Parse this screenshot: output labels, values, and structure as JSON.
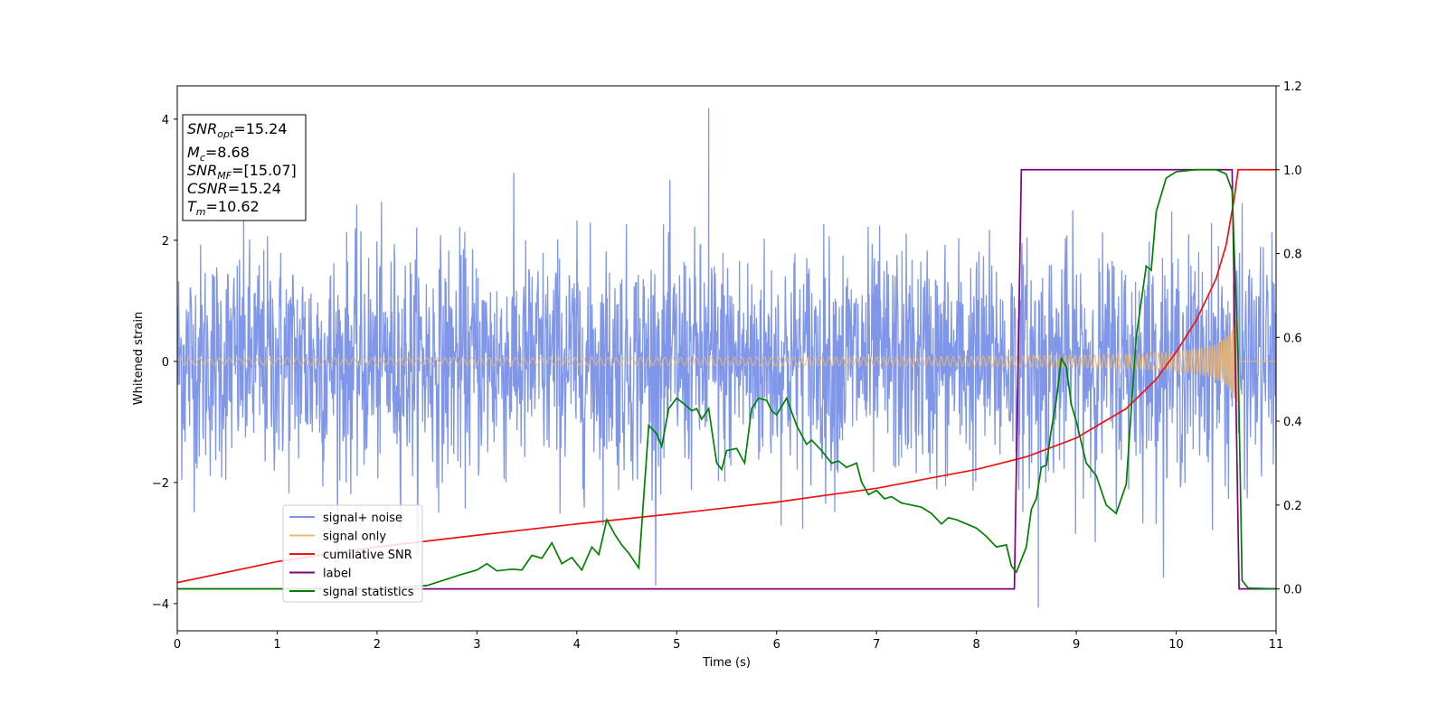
{
  "chart_data": {
    "type": "line",
    "title": "",
    "xlabel": "Time (s)",
    "ylabel": "Whitened strain",
    "ylabel_right": "",
    "xlim": [
      0,
      11
    ],
    "ylim": [
      -4.45,
      4.55
    ],
    "ylim_right": [
      -0.1,
      1.2
    ],
    "xticks": [
      0,
      1,
      2,
      3,
      4,
      5,
      6,
      7,
      8,
      9,
      10,
      11
    ],
    "yticks": [
      -4,
      -2,
      0,
      2,
      4
    ],
    "yticks_right": [
      0.0,
      0.2,
      0.4,
      0.6,
      0.8,
      1.0,
      1.2
    ],
    "grid": false,
    "legend_location": "lower-left",
    "info_box": {
      "lines": [
        {
          "main": "SNR",
          "sub": "opt",
          "value": "=15.24"
        },
        {
          "main": "M",
          "sub": "c",
          "value": "=8.68"
        },
        {
          "main": "SNR",
          "sub": "MF",
          "value": "=[15.07]"
        },
        {
          "main": "CSNR",
          "sub": "",
          "value": "=15.24"
        },
        {
          "main": "T",
          "sub": "m",
          "value": "=10.62"
        }
      ]
    },
    "series": [
      {
        "name": "signal+ noise",
        "axis": "left",
        "color": "#7b93e8",
        "kind": "noise",
        "noise_sigma": 0.95,
        "peak_max": 4.18,
        "peak_max_time": 5.32,
        "trough_min": -4.07,
        "trough_min_time": 8.62
      },
      {
        "name": "signal only",
        "axis": "left",
        "color": "#f0b86a",
        "kind": "chirp",
        "merger_time": 10.62,
        "amplitude_start": 0.05,
        "amplitude_end": 0.85
      },
      {
        "name": "cumilative SNR",
        "axis": "right",
        "color": "#ee1111",
        "points": [
          [
            0,
            0.015
          ],
          [
            1,
            0.065
          ],
          [
            2,
            0.1
          ],
          [
            3,
            0.128
          ],
          [
            4,
            0.155
          ],
          [
            5,
            0.18
          ],
          [
            6,
            0.207
          ],
          [
            7,
            0.24
          ],
          [
            8,
            0.285
          ],
          [
            8.5,
            0.315
          ],
          [
            9,
            0.36
          ],
          [
            9.5,
            0.43
          ],
          [
            9.8,
            0.5
          ],
          [
            10,
            0.565
          ],
          [
            10.2,
            0.64
          ],
          [
            10.4,
            0.74
          ],
          [
            10.5,
            0.82
          ],
          [
            10.58,
            0.93
          ],
          [
            10.62,
            1.0
          ],
          [
            11,
            1.0
          ]
        ]
      },
      {
        "name": "label",
        "axis": "right",
        "color": "#800080",
        "points": [
          [
            0,
            0
          ],
          [
            8.38,
            0
          ],
          [
            8.45,
            1.0
          ],
          [
            10.56,
            1.0
          ],
          [
            10.63,
            0
          ],
          [
            11,
            0
          ]
        ]
      },
      {
        "name": "signal statistics",
        "axis": "right",
        "color": "#008000",
        "points": [
          [
            0,
            0
          ],
          [
            1,
            0
          ],
          [
            2,
            0
          ],
          [
            2.5,
            0.008
          ],
          [
            2.85,
            0.035
          ],
          [
            3.0,
            0.045
          ],
          [
            3.1,
            0.06
          ],
          [
            3.2,
            0.043
          ],
          [
            3.35,
            0.047
          ],
          [
            3.45,
            0.045
          ],
          [
            3.55,
            0.08
          ],
          [
            3.65,
            0.073
          ],
          [
            3.75,
            0.11
          ],
          [
            3.85,
            0.06
          ],
          [
            3.95,
            0.075
          ],
          [
            4.05,
            0.045
          ],
          [
            4.15,
            0.1
          ],
          [
            4.22,
            0.082
          ],
          [
            4.3,
            0.165
          ],
          [
            4.38,
            0.13
          ],
          [
            4.45,
            0.105
          ],
          [
            4.52,
            0.085
          ],
          [
            4.62,
            0.05
          ],
          [
            4.72,
            0.39
          ],
          [
            4.8,
            0.37
          ],
          [
            4.85,
            0.34
          ],
          [
            4.92,
            0.43
          ],
          [
            5.0,
            0.455
          ],
          [
            5.08,
            0.44
          ],
          [
            5.15,
            0.425
          ],
          [
            5.2,
            0.43
          ],
          [
            5.25,
            0.405
          ],
          [
            5.32,
            0.43
          ],
          [
            5.4,
            0.3
          ],
          [
            5.45,
            0.285
          ],
          [
            5.5,
            0.33
          ],
          [
            5.6,
            0.335
          ],
          [
            5.68,
            0.3
          ],
          [
            5.75,
            0.43
          ],
          [
            5.82,
            0.455
          ],
          [
            5.9,
            0.45
          ],
          [
            5.95,
            0.425
          ],
          [
            6.0,
            0.415
          ],
          [
            6.1,
            0.455
          ],
          [
            6.2,
            0.39
          ],
          [
            6.3,
            0.345
          ],
          [
            6.35,
            0.355
          ],
          [
            6.45,
            0.33
          ],
          [
            6.55,
            0.3
          ],
          [
            6.62,
            0.305
          ],
          [
            6.7,
            0.29
          ],
          [
            6.8,
            0.3
          ],
          [
            6.85,
            0.255
          ],
          [
            6.92,
            0.225
          ],
          [
            7.0,
            0.235
          ],
          [
            7.08,
            0.215
          ],
          [
            7.15,
            0.22
          ],
          [
            7.25,
            0.205
          ],
          [
            7.35,
            0.2
          ],
          [
            7.45,
            0.195
          ],
          [
            7.55,
            0.18
          ],
          [
            7.65,
            0.155
          ],
          [
            7.72,
            0.17
          ],
          [
            7.8,
            0.165
          ],
          [
            7.9,
            0.155
          ],
          [
            8.0,
            0.145
          ],
          [
            8.1,
            0.125
          ],
          [
            8.2,
            0.1
          ],
          [
            8.3,
            0.105
          ],
          [
            8.35,
            0.055
          ],
          [
            8.4,
            0.04
          ],
          [
            8.45,
            0.07
          ],
          [
            8.5,
            0.1
          ],
          [
            8.55,
            0.19
          ],
          [
            8.6,
            0.215
          ],
          [
            8.65,
            0.29
          ],
          [
            8.7,
            0.295
          ],
          [
            8.75,
            0.38
          ],
          [
            8.8,
            0.45
          ],
          [
            8.85,
            0.55
          ],
          [
            8.9,
            0.53
          ],
          [
            8.95,
            0.44
          ],
          [
            9.0,
            0.4
          ],
          [
            9.1,
            0.3
          ],
          [
            9.2,
            0.27
          ],
          [
            9.3,
            0.2
          ],
          [
            9.4,
            0.18
          ],
          [
            9.5,
            0.25
          ],
          [
            9.6,
            0.6
          ],
          [
            9.7,
            0.77
          ],
          [
            9.75,
            0.76
          ],
          [
            9.8,
            0.9
          ],
          [
            9.9,
            0.98
          ],
          [
            10.0,
            0.995
          ],
          [
            10.2,
            1.0
          ],
          [
            10.4,
            1.0
          ],
          [
            10.5,
            0.99
          ],
          [
            10.56,
            0.95
          ],
          [
            10.62,
            0.55
          ],
          [
            10.66,
            0.02
          ],
          [
            10.72,
            0.002
          ],
          [
            11,
            0.0
          ]
        ]
      }
    ]
  }
}
